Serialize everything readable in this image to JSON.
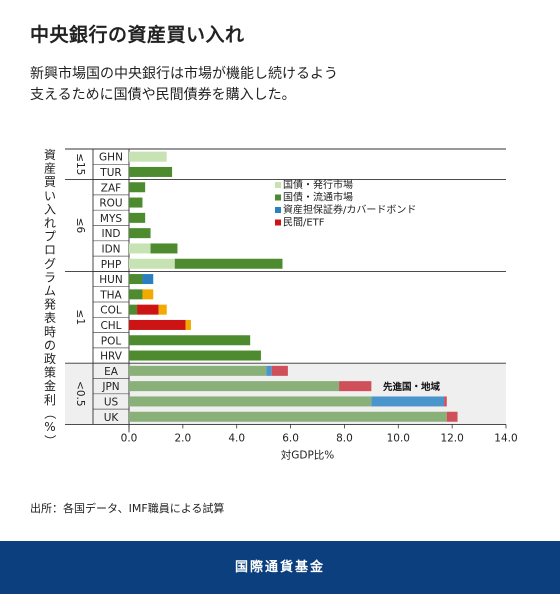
{
  "header": {
    "title": "中央銀行の資産買い入れ",
    "subtitle_line1": "新興市場国の中央銀行は市場が機能し続けるよう",
    "subtitle_line2": "支えるために国債や民間債券を購入した。"
  },
  "source_note": "出所：各国データ、IMF職員による試算",
  "footer": {
    "org_name": "国際通貨基金"
  },
  "chart_data": {
    "type": "bar",
    "orientation": "horizontal",
    "stacked": true,
    "xlabel": "対GDP比%",
    "ylabel": "資産買い入れプログラム発表時の政策金利（%）",
    "xlim": [
      0,
      14
    ],
    "xticks": [
      "0.0",
      "2.0",
      "4.0",
      "6.0",
      "8.0",
      "10.0",
      "12.0",
      "14.0"
    ],
    "categories": [
      "GHN",
      "TUR",
      "ZAF",
      "ROU",
      "MYS",
      "IND",
      "IDN",
      "PHP",
      "HUN",
      "THA",
      "COL",
      "CHL",
      "POL",
      "HRV",
      "EA",
      "JPN",
      "US",
      "UK"
    ],
    "rate_groups": [
      {
        "label": "≤15",
        "start": 0,
        "end": 1
      },
      {
        "label": "≤6",
        "start": 2,
        "end": 7
      },
      {
        "label": "≤1",
        "start": 8,
        "end": 13
      },
      {
        "label": "<0.5",
        "start": 14,
        "end": 17
      }
    ],
    "series": [
      {
        "name": "国債・発行市場",
        "color": "#c7e2b3",
        "values": [
          1.4,
          0,
          0,
          0,
          0,
          0,
          0.8,
          1.7,
          0,
          0,
          0,
          0,
          0,
          0,
          0,
          0,
          0,
          0
        ]
      },
      {
        "name": "国債・流通市場",
        "color": "#4e8a2e",
        "values": [
          0,
          1.6,
          0.6,
          0.5,
          0.6,
          0.8,
          1.0,
          4.0,
          0.5,
          0.5,
          0.3,
          0,
          4.5,
          4.9,
          0,
          0,
          0,
          0
        ]
      },
      {
        "name": "資産担保証券/カバードボンド",
        "color": "#2a7fc1",
        "values": [
          0,
          0,
          0,
          0,
          0,
          0,
          0,
          0,
          0.4,
          0,
          0,
          0,
          0,
          0,
          0,
          0,
          0,
          0
        ]
      },
      {
        "name": "民間/ETF",
        "color": "#cc1414",
        "values": [
          0,
          0,
          0,
          0,
          0,
          0,
          0,
          0,
          0,
          0,
          0.8,
          2.1,
          0,
          0,
          0,
          0,
          0,
          0
        ]
      },
      {
        "name": "",
        "color": "#f2a900",
        "values": [
          0,
          0,
          0,
          0,
          0,
          0,
          0,
          0,
          0,
          0.4,
          0.3,
          0.2,
          0,
          0,
          0,
          0,
          0,
          0
        ]
      }
    ],
    "advanced_series": [
      {
        "color": "#8ab07a",
        "values": [
          0,
          0,
          0,
          0,
          0,
          0,
          0,
          0,
          0,
          0,
          0,
          0,
          0,
          0,
          5.1,
          7.8,
          9.0,
          11.8
        ]
      },
      {
        "color": "#4a96cc",
        "values": [
          0,
          0,
          0,
          0,
          0,
          0,
          0,
          0,
          0,
          0,
          0,
          0,
          0,
          0,
          0.2,
          0,
          2.7,
          0
        ]
      },
      {
        "color": "#d0505a",
        "values": [
          0,
          0,
          0,
          0,
          0,
          0,
          0,
          0,
          0,
          0,
          0,
          0,
          0,
          0,
          0.6,
          1.2,
          0.1,
          0.4
        ]
      }
    ],
    "annotation": "先進国・地域",
    "legend_position": "right"
  }
}
